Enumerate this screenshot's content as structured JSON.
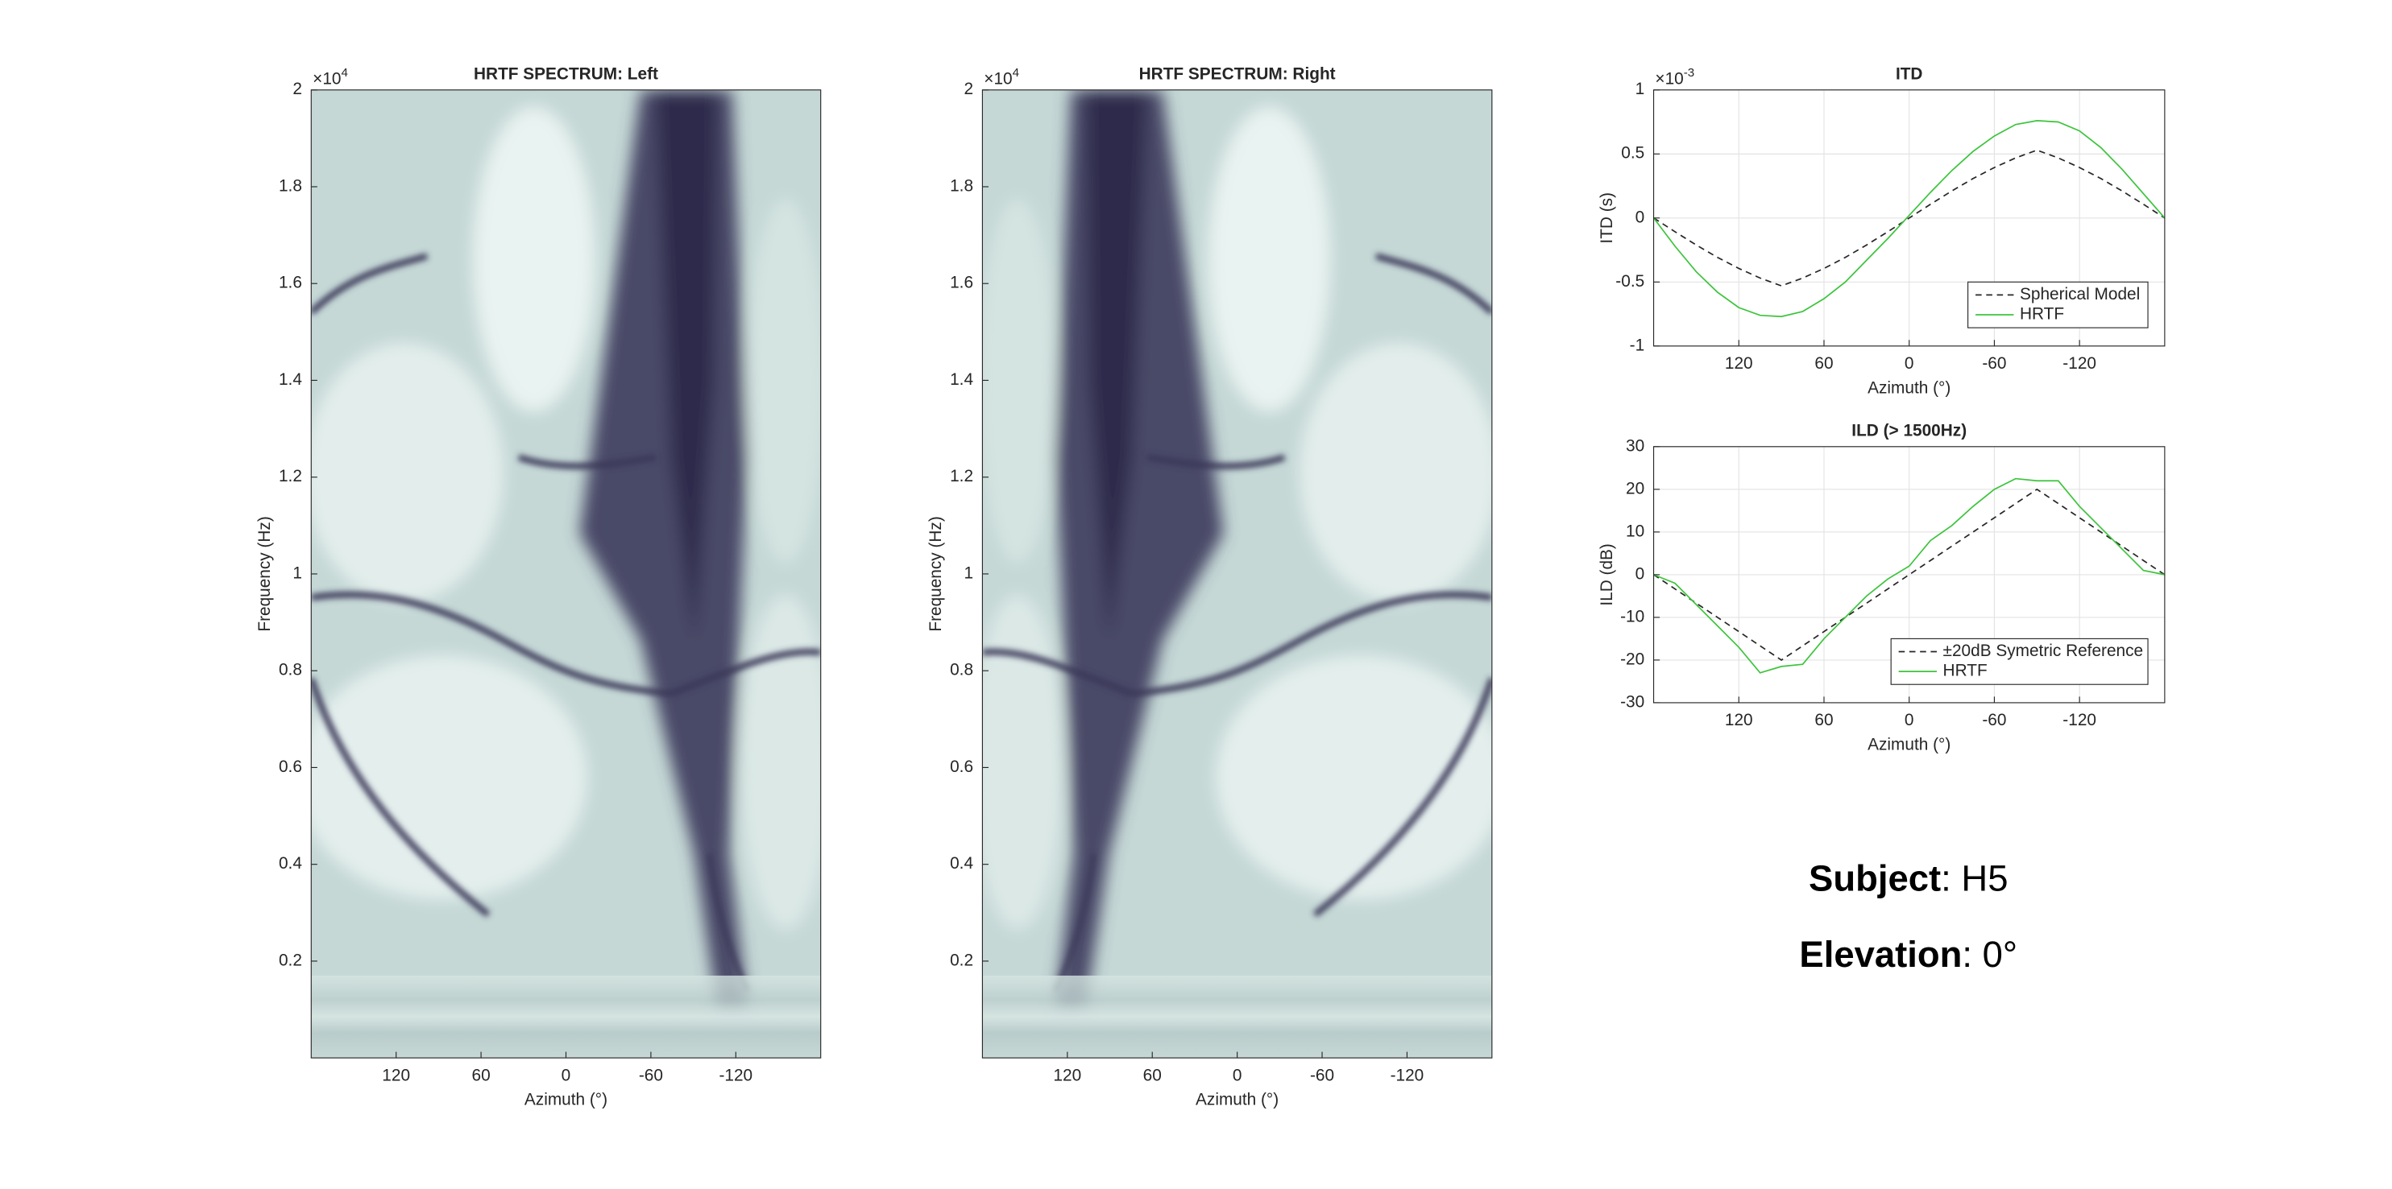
{
  "chart_data": [
    {
      "type": "heatmap",
      "title": "HRTF SPECTRUM: Left",
      "x_label": "Azimuth (°)",
      "y_label": "Frequency (Hz)",
      "y_scale_base": "×10",
      "y_scale_exponent": "4",
      "xlim": [
        180,
        -180
      ],
      "xticks": [
        120,
        60,
        0,
        -60,
        -120
      ],
      "ylim": [
        0,
        2
      ],
      "yticks": [
        0.2,
        0.4,
        0.6,
        0.8,
        1,
        1.2,
        1.4,
        1.6,
        1.8,
        2
      ],
      "grid": false
    },
    {
      "type": "heatmap",
      "title": "HRTF SPECTRUM: Right",
      "x_label": "Azimuth (°)",
      "y_label": "Frequency (Hz)",
      "y_scale_base": "×10",
      "y_scale_exponent": "4",
      "xlim": [
        180,
        -180
      ],
      "xticks": [
        120,
        60,
        0,
        -60,
        -120
      ],
      "ylim": [
        0,
        2
      ],
      "yticks": [
        0.2,
        0.4,
        0.6,
        0.8,
        1,
        1.2,
        1.4,
        1.6,
        1.8,
        2
      ],
      "grid": false
    },
    {
      "type": "line",
      "title": "ITD",
      "x_label": "Azimuth (°)",
      "y_label": "ITD (s)",
      "y_scale_base": "×10",
      "y_scale_exponent": "-3",
      "xlim": [
        180,
        -180
      ],
      "xticks": [
        120,
        60,
        0,
        -60,
        -120
      ],
      "ylim": [
        -1,
        1
      ],
      "yticks": [
        -1,
        -0.5,
        0,
        0.5,
        1
      ],
      "grid": true,
      "legend": "southeast",
      "x": [
        180,
        165,
        150,
        135,
        120,
        105,
        90,
        75,
        60,
        45,
        30,
        15,
        0,
        -15,
        -30,
        -45,
        -60,
        -75,
        -90,
        -105,
        -120,
        -135,
        -150,
        -165,
        -180
      ],
      "series": [
        {
          "name": "Spherical Model",
          "color": "#262626",
          "linestyle": "dashed",
          "values": [
            0,
            -0.107,
            -0.211,
            -0.308,
            -0.394,
            -0.469,
            -0.53,
            -0.469,
            -0.394,
            -0.308,
            -0.211,
            -0.107,
            0,
            0.107,
            0.211,
            0.308,
            0.394,
            0.469,
            0.53,
            0.469,
            0.394,
            0.308,
            0.211,
            0.107,
            0
          ]
        },
        {
          "name": "HRTF",
          "color": "#3cc43c",
          "linestyle": "solid",
          "values": [
            0,
            -0.22,
            -0.42,
            -0.58,
            -0.7,
            -0.76,
            -0.77,
            -0.73,
            -0.63,
            -0.5,
            -0.33,
            -0.16,
            0.02,
            0.2,
            0.37,
            0.52,
            0.64,
            0.73,
            0.76,
            0.75,
            0.68,
            0.55,
            0.38,
            0.19,
            0
          ]
        }
      ]
    },
    {
      "type": "line",
      "title": "ILD (> 1500Hz)",
      "x_label": "Azimuth (°)",
      "y_label": "ILD (dB)",
      "xlim": [
        180,
        -180
      ],
      "xticks": [
        120,
        60,
        0,
        -60,
        -120
      ],
      "ylim": [
        -30,
        30
      ],
      "yticks": [
        -30,
        -20,
        -10,
        0,
        10,
        20,
        30
      ],
      "grid": true,
      "legend": "southeast",
      "x": [
        180,
        165,
        150,
        135,
        120,
        105,
        90,
        75,
        60,
        45,
        30,
        15,
        0,
        -15,
        -30,
        -45,
        -60,
        -75,
        -90,
        -105,
        -120,
        -135,
        -150,
        -165,
        -180
      ],
      "series": [
        {
          "name": "±20dB Symetric Reference",
          "color": "#262626",
          "linestyle": "dashed",
          "values": [
            0,
            -3.33,
            -6.67,
            -10,
            -13.33,
            -16.67,
            -20,
            -16.67,
            -13.33,
            -10,
            -6.67,
            -3.33,
            0,
            3.33,
            6.67,
            10,
            13.33,
            16.67,
            20,
            16.67,
            13.33,
            10,
            6.67,
            3.33,
            0
          ]
        },
        {
          "name": "HRTF",
          "color": "#3cc43c",
          "linestyle": "solid",
          "values": [
            0,
            -2,
            -7,
            -12,
            -17,
            -23,
            -21.5,
            -21,
            -15,
            -10,
            -5,
            -1,
            2,
            8,
            11.5,
            16,
            20,
            22.5,
            22,
            22,
            16,
            11,
            6,
            1,
            0
          ]
        }
      ]
    }
  ],
  "subject": {
    "label": "Subject",
    "value": ": H5"
  },
  "elevation": {
    "label": "Elevation",
    "value": ": 0°"
  }
}
